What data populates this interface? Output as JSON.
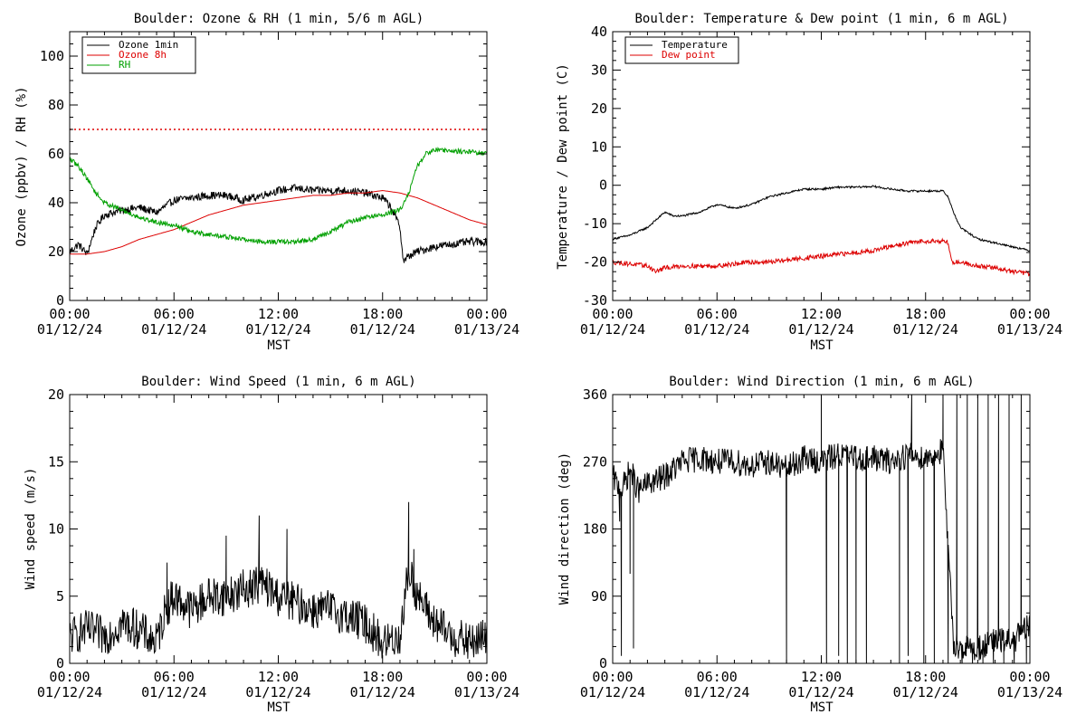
{
  "chart_data": [
    {
      "type": "line",
      "title": "Boulder: Ozone & RH (1 min, 5/6 m AGL)",
      "xlabel": "MST",
      "ylabel": "Ozone (ppbv) / RH (%)",
      "xlim": [
        0,
        24
      ],
      "ylim": [
        0,
        110
      ],
      "yticks": [
        0,
        20,
        40,
        60,
        80,
        100
      ],
      "xticks": [
        {
          "time": "00:00",
          "date": "01/12/24"
        },
        {
          "time": "06:00",
          "date": "01/12/24"
        },
        {
          "time": "12:00",
          "date": "01/12/24"
        },
        {
          "time": "18:00",
          "date": "01/12/24"
        },
        {
          "time": "00:00",
          "date": "01/13/24"
        }
      ],
      "legend_position": "top-left",
      "reference_line": {
        "y": 70,
        "color": "#dd0000",
        "style": "dotted"
      },
      "series": [
        {
          "name": "Ozone 1min",
          "color": "#000000",
          "noise": 1.6,
          "x": [
            0,
            0.5,
            1,
            1.5,
            2,
            3,
            4,
            5,
            6,
            7,
            8,
            9,
            10,
            11,
            12,
            13,
            14,
            15,
            16,
            17,
            18,
            18.5,
            19,
            19.2,
            19.5,
            20,
            21,
            22,
            23,
            24
          ],
          "y": [
            20,
            23,
            19,
            30,
            35,
            37,
            38,
            36,
            41,
            42,
            43,
            43,
            41,
            43,
            45,
            46,
            45,
            45,
            45,
            44,
            42,
            38,
            30,
            16,
            18,
            20,
            22,
            23,
            24,
            24
          ]
        },
        {
          "name": "Ozone 8h",
          "color": "#dd0000",
          "noise": 0,
          "x": [
            0,
            1,
            2,
            3,
            4,
            5,
            6,
            7,
            8,
            9,
            10,
            11,
            12,
            13,
            14,
            15,
            16,
            17,
            18,
            19,
            20,
            21,
            22,
            23,
            24
          ],
          "y": [
            19,
            19,
            20,
            22,
            25,
            27,
            29,
            32,
            35,
            37,
            39,
            40,
            41,
            42,
            43,
            43,
            44,
            44,
            45,
            44,
            42,
            39,
            36,
            33,
            31
          ]
        },
        {
          "name": "RH",
          "color": "#00a000",
          "noise": 1.0,
          "x": [
            0,
            0.5,
            1,
            1.5,
            2,
            3,
            4,
            5,
            6,
            7,
            8,
            9,
            10,
            11,
            12,
            13,
            14,
            15,
            16,
            17,
            18,
            18.5,
            19,
            19.5,
            20,
            20.5,
            21,
            22,
            23,
            24
          ],
          "y": [
            58,
            55,
            50,
            44,
            40,
            37,
            34,
            32,
            31,
            28,
            27,
            26,
            25,
            24,
            24,
            24,
            25,
            28,
            32,
            34,
            35,
            36,
            37,
            44,
            55,
            60,
            62,
            61,
            61,
            60
          ]
        }
      ]
    },
    {
      "type": "line",
      "title": "Boulder: Temperature & Dew point (1 min, 6 m AGL)",
      "xlabel": "MST",
      "ylabel": "Temperature / Dew point (C)",
      "xlim": [
        0,
        24
      ],
      "ylim": [
        -30,
        40
      ],
      "yticks": [
        -30,
        -20,
        -10,
        0,
        10,
        20,
        30,
        40
      ],
      "xticks": [
        {
          "time": "00:00",
          "date": "01/12/24"
        },
        {
          "time": "06:00",
          "date": "01/12/24"
        },
        {
          "time": "12:00",
          "date": "01/12/24"
        },
        {
          "time": "18:00",
          "date": "01/12/24"
        },
        {
          "time": "00:00",
          "date": "01/13/24"
        }
      ],
      "legend_position": "top-left",
      "series": [
        {
          "name": "Temperature",
          "color": "#000000",
          "noise": 0.25,
          "x": [
            0,
            1,
            2,
            3,
            3.5,
            4,
            5,
            6,
            7,
            8,
            9,
            10,
            11,
            12,
            13,
            14,
            15,
            16,
            17,
            18,
            19,
            19.3,
            19.6,
            20,
            21,
            22,
            23,
            24
          ],
          "y": [
            -14,
            -13,
            -11,
            -7,
            -8,
            -8,
            -7,
            -5,
            -6,
            -5,
            -3,
            -2,
            -1,
            -1,
            -0.5,
            -0.5,
            -0.3,
            -1,
            -1.5,
            -1.5,
            -1.5,
            -3,
            -7,
            -11,
            -14,
            -15,
            -16,
            -17
          ]
        },
        {
          "name": "Dew point",
          "color": "#dd0000",
          "noise": 0.6,
          "x": [
            0,
            1,
            2,
            2.5,
            3,
            4,
            5,
            6,
            7,
            8,
            9,
            10,
            11,
            12,
            13,
            14,
            15,
            16,
            17,
            18,
            19,
            19.3,
            19.5,
            20,
            21,
            22,
            23,
            24
          ],
          "y": [
            -20,
            -20.5,
            -21,
            -22.5,
            -21.5,
            -21,
            -21,
            -21,
            -20.5,
            -20,
            -20,
            -19.5,
            -19,
            -18.5,
            -18,
            -17.5,
            -17,
            -16,
            -15,
            -14.5,
            -14.5,
            -15,
            -20,
            -20,
            -21,
            -21.5,
            -22.5,
            -23
          ]
        }
      ]
    },
    {
      "type": "line",
      "title": "Boulder: Wind Speed (1 min, 6 m AGL)",
      "xlabel": "MST",
      "ylabel": "Wind speed (m/s)",
      "xlim": [
        0,
        24
      ],
      "ylim": [
        0,
        20
      ],
      "yticks": [
        0,
        5,
        10,
        15,
        20
      ],
      "xticks": [
        {
          "time": "00:00",
          "date": "01/12/24"
        },
        {
          "time": "06:00",
          "date": "01/12/24"
        },
        {
          "time": "12:00",
          "date": "01/12/24"
        },
        {
          "time": "18:00",
          "date": "01/12/24"
        },
        {
          "time": "00:00",
          "date": "01/13/24"
        }
      ],
      "series": [
        {
          "name": "",
          "color": "#000000",
          "noise": 1.5,
          "spikes": [
            [
              5.6,
              7.5
            ],
            [
              9.0,
              9.5
            ],
            [
              10.9,
              11.0
            ],
            [
              12.5,
              10.0
            ],
            [
              19.5,
              12.0
            ],
            [
              19.8,
              8.5
            ]
          ],
          "x": [
            0,
            1,
            2,
            3,
            4,
            5,
            5.5,
            6,
            7,
            8,
            9,
            10,
            11,
            12,
            13,
            14,
            15,
            16,
            17,
            18,
            19,
            19.5,
            20,
            21,
            22,
            23,
            24
          ],
          "y": [
            2,
            2.5,
            2,
            3,
            2.5,
            1.5,
            4,
            5,
            4,
            5,
            5,
            5.5,
            6,
            5,
            4.5,
            4,
            4,
            3.5,
            3,
            1.5,
            2,
            7,
            5,
            3,
            2,
            1.5,
            2
          ]
        }
      ]
    },
    {
      "type": "line",
      "title": "Boulder: Wind Direction (1 min, 6 m AGL)",
      "xlabel": "MST",
      "ylabel": "Wind direction (deg)",
      "xlim": [
        0,
        24
      ],
      "ylim": [
        0,
        360
      ],
      "yticks": [
        0,
        90,
        180,
        270,
        360
      ],
      "xticks": [
        {
          "time": "00:00",
          "date": "01/12/24"
        },
        {
          "time": "06:00",
          "date": "01/12/24"
        },
        {
          "time": "12:00",
          "date": "01/12/24"
        },
        {
          "time": "18:00",
          "date": "01/12/24"
        },
        {
          "time": "00:00",
          "date": "01/13/24"
        }
      ],
      "series": [
        {
          "name": "",
          "color": "#000000",
          "noise": 18,
          "spikes": [
            [
              0.4,
              190
            ],
            [
              0.5,
              10
            ],
            [
              1.0,
              120
            ],
            [
              1.2,
              20
            ],
            [
              10.0,
              0
            ],
            [
              12.0,
              360
            ],
            [
              12.3,
              0
            ],
            [
              13.0,
              10
            ],
            [
              13.5,
              0
            ],
            [
              14.0,
              0
            ],
            [
              14.6,
              0
            ],
            [
              16.5,
              0
            ],
            [
              17.0,
              10
            ],
            [
              17.2,
              360
            ],
            [
              17.9,
              0
            ],
            [
              18.5,
              0
            ],
            [
              19.0,
              360
            ],
            [
              19.3,
              0
            ],
            [
              19.8,
              360
            ],
            [
              20.1,
              0
            ],
            [
              20.4,
              360
            ],
            [
              20.7,
              0
            ],
            [
              21.0,
              360
            ],
            [
              21.3,
              0
            ],
            [
              21.6,
              360
            ],
            [
              21.9,
              0
            ],
            [
              22.2,
              360
            ],
            [
              22.5,
              0
            ],
            [
              22.8,
              360
            ],
            [
              23.1,
              0
            ],
            [
              23.5,
              360
            ],
            [
              23.8,
              0
            ],
            [
              24,
              180
            ]
          ],
          "x": [
            0,
            0.5,
            1,
            1.5,
            2,
            3,
            4,
            5,
            6,
            7,
            8,
            9,
            10,
            11,
            12,
            13,
            14,
            15,
            16,
            17,
            18,
            19,
            19.3,
            19.6,
            20,
            21,
            22,
            23,
            24
          ],
          "y": [
            250,
            230,
            260,
            230,
            240,
            250,
            270,
            275,
            270,
            270,
            265,
            270,
            260,
            275,
            270,
            280,
            275,
            275,
            270,
            280,
            275,
            285,
            150,
            30,
            20,
            20,
            30,
            30,
            50
          ]
        }
      ]
    }
  ]
}
